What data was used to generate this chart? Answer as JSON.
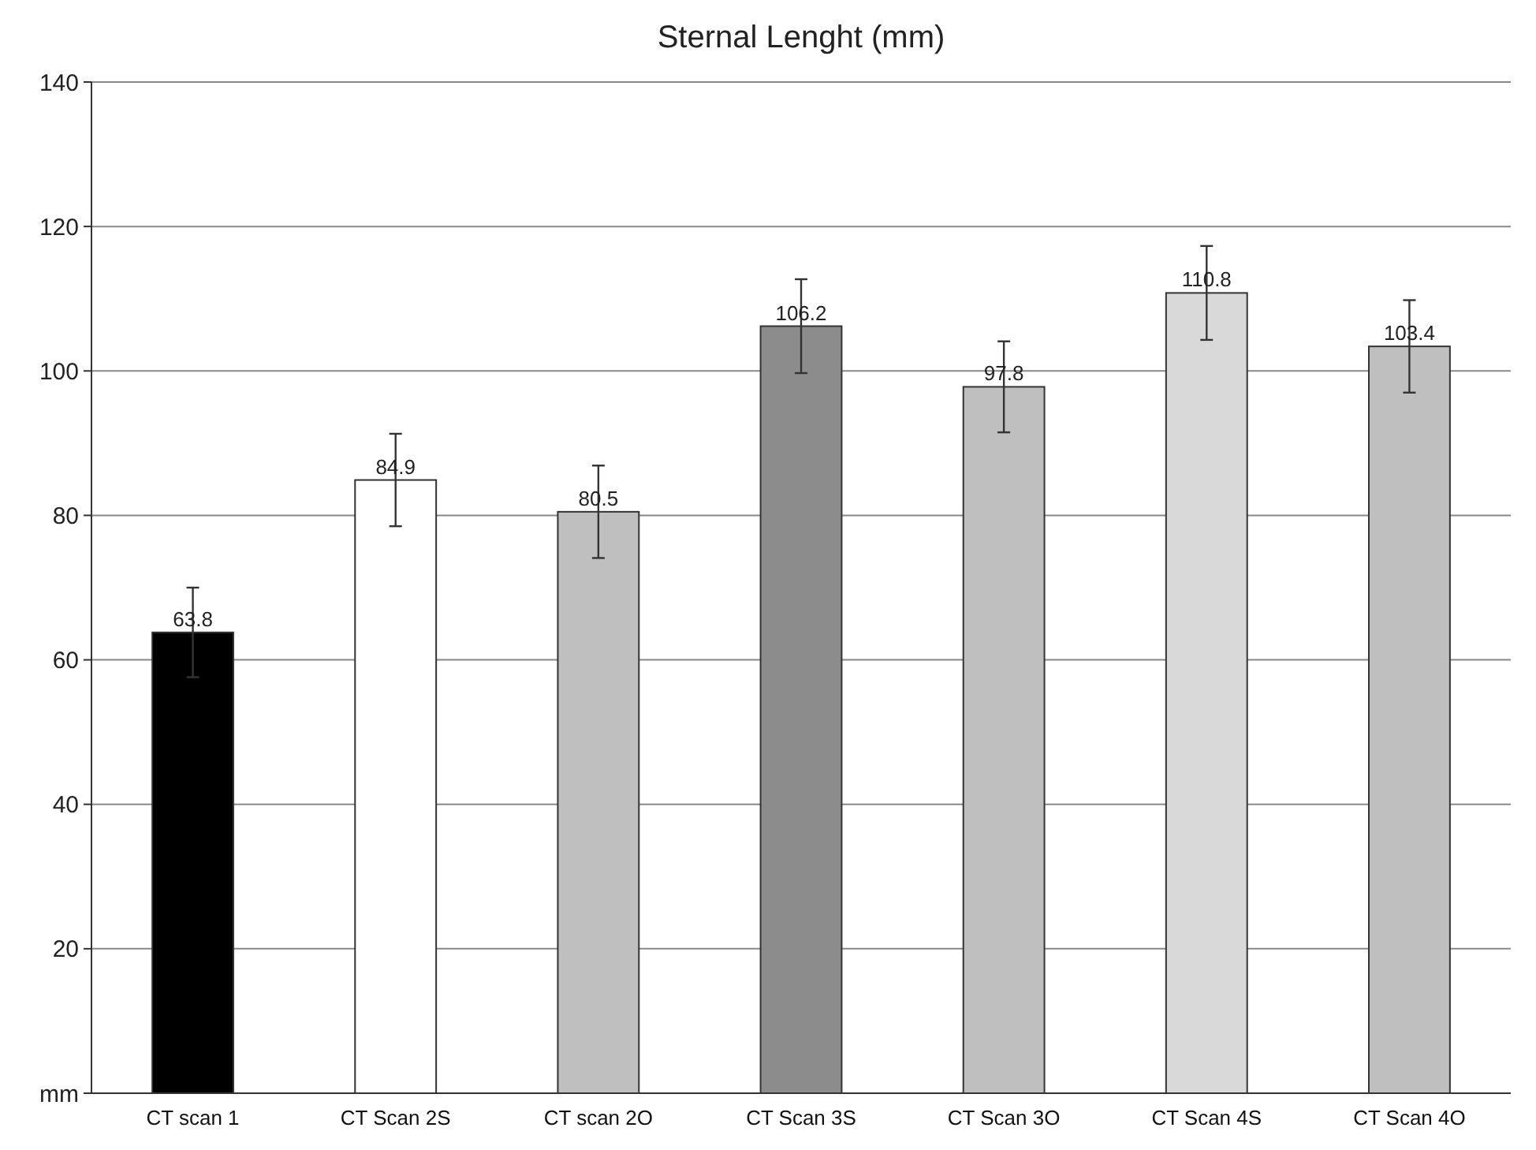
{
  "chart_data": {
    "type": "bar",
    "title": "Sternal Lenght (mm)",
    "categories": [
      "CT scan 1",
      "CT Scan 2S",
      "CT scan 2O",
      "CT Scan 3S",
      "CT Scan 3O",
      "CT Scan 4S",
      "CT Scan 4O"
    ],
    "values": [
      63.8,
      84.9,
      80.5,
      106.2,
      97.8,
      110.8,
      103.4
    ],
    "colors": [
      "#000000",
      "#ffffff",
      "#bfbfbf",
      "#8c8c8c",
      "#bfbfbf",
      "#d9d9d9",
      "#bfbfbf"
    ],
    "errors": [
      6.2,
      6.4,
      6.4,
      6.5,
      6.3,
      6.5,
      6.4
    ],
    "data_labels": true,
    "ylim": [
      0,
      140
    ],
    "yticks": [
      {
        "value": 0,
        "label": "mm"
      },
      20,
      40,
      60,
      80,
      100,
      120,
      140
    ],
    "grid": "y"
  }
}
